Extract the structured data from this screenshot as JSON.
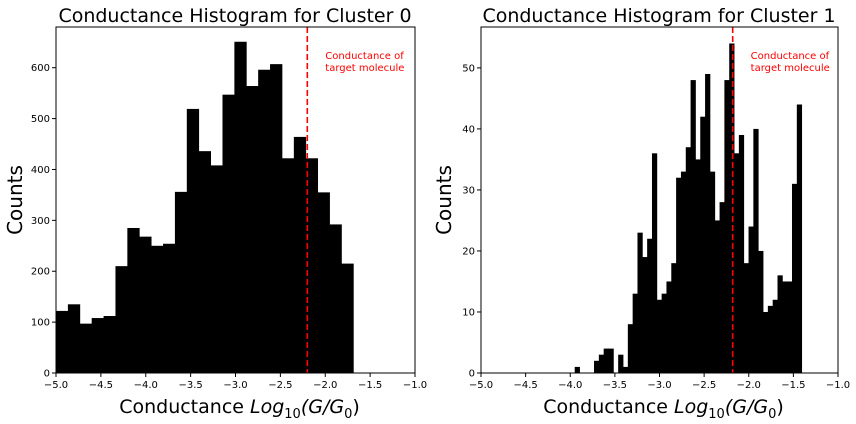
{
  "chart_data": [
    {
      "type": "bar",
      "title": "Conductance Histogram for Cluster 0",
      "xlabel_text": "Conductance ",
      "xlabel_math": "Log",
      "xlabel_sub": "10",
      "xlabel_open": "(G/G",
      "xlabel_sub0": "0",
      "xlabel_close": ")",
      "ylabel": "Counts",
      "xlim": [
        -5.0,
        -1.0
      ],
      "ylim": [
        0,
        680
      ],
      "xticks": [
        -5.0,
        -4.5,
        -4.0,
        -3.5,
        -3.0,
        -2.5,
        -2.0,
        -1.5,
        -1.0
      ],
      "xtick_labels": [
        "−5.0",
        "−4.5",
        "−4.0",
        "−3.5",
        "−3.0",
        "−2.5",
        "−2.0",
        "−1.5",
        "−1.0"
      ],
      "yticks": [
        0,
        100,
        200,
        300,
        400,
        500,
        600
      ],
      "ytick_labels": [
        "0",
        "100",
        "200",
        "300",
        "400",
        "500",
        "600"
      ],
      "bin_start": -5.0,
      "bin_width": 0.1325,
      "values": [
        122,
        135,
        97,
        108,
        112,
        210,
        285,
        268,
        250,
        254,
        356,
        519,
        436,
        408,
        547,
        651,
        564,
        596,
        607,
        422,
        464,
        422,
        355,
        292,
        215
      ],
      "bar_color": "#000000",
      "vline": {
        "x": -2.2,
        "color": "#ff0000",
        "style": "dashed"
      },
      "annotation": [
        "Conductance of",
        "target molecule"
      ],
      "annotation_color": "#ff0000"
    },
    {
      "type": "bar",
      "title": "Conductance Histogram for Cluster 1",
      "xlabel_text": "Conductance ",
      "xlabel_math": "Log",
      "xlabel_sub": "10",
      "xlabel_open": "(G/G",
      "xlabel_sub0": "0",
      "xlabel_close": ")",
      "ylabel": "Counts",
      "xlim": [
        -5.0,
        -1.0
      ],
      "ylim": [
        0,
        56.7
      ],
      "xticks": [
        -5.0,
        -4.5,
        -4.0,
        -3.5,
        -3.0,
        -2.5,
        -2.0,
        -1.5,
        -1.0
      ],
      "xtick_labels": [
        "−5.0",
        "−4.5",
        "−4.0",
        "−3.5",
        "−3.0",
        "−2.5",
        "−2.0",
        "−1.5",
        "−1.0"
      ],
      "yticks": [
        0,
        10,
        20,
        30,
        40,
        50
      ],
      "ytick_labels": [
        "0",
        "10",
        "20",
        "30",
        "40",
        "50"
      ],
      "bin_start": -3.95,
      "bin_width": 0.0541,
      "values": [
        1,
        0,
        0,
        0,
        2,
        3,
        4,
        4,
        0,
        3,
        1,
        8,
        13,
        23,
        19,
        22,
        36,
        12,
        13,
        15,
        18,
        32,
        33,
        37,
        48,
        35,
        42,
        49,
        33,
        25,
        28,
        48,
        54,
        36,
        39,
        18,
        24,
        40,
        20,
        10,
        11,
        12,
        16,
        15,
        15,
        31,
        44
      ],
      "bar_color": "#000000",
      "vline": {
        "x": -2.18,
        "color": "#ff0000",
        "style": "dashed"
      },
      "annotation": [
        "Conductance of",
        "target molecule"
      ],
      "annotation_color": "#ff0000"
    }
  ]
}
